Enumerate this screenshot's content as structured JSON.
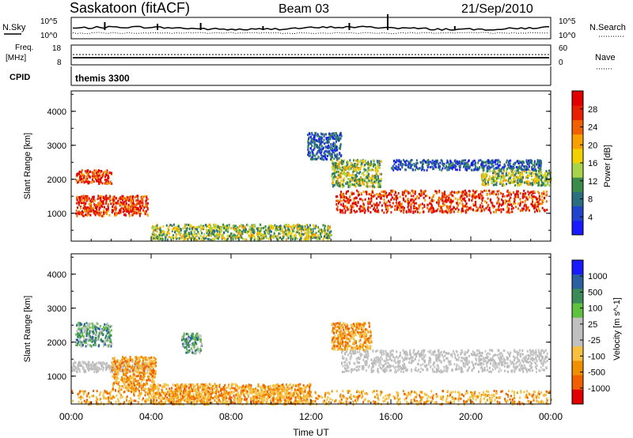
{
  "header": {
    "station": "Saskatoon (fitACF)",
    "beam": "Beam 03",
    "date": "21/Sep/2010"
  },
  "noise_panel": {
    "left_label": "N.Sky",
    "right_label": "N.Search",
    "left_ticks": [
      "10^5",
      "10^0"
    ],
    "right_ticks": [
      "10^5",
      "10^0"
    ]
  },
  "freq_panel": {
    "left_label_1": "Freq.",
    "left_label_2": "[MHz]",
    "right_label": "Nave",
    "left_ticks": [
      "18",
      "8"
    ],
    "right_ticks": [
      "60",
      "0"
    ]
  },
  "cpid_panel": {
    "label": "CPID",
    "text": "themis 3300"
  },
  "chart_data": [
    {
      "type": "heatmap",
      "name": "power",
      "ylabel": "Slant Range [km]",
      "ylim": [
        180,
        4600
      ],
      "yticks": [
        "1000",
        "2000",
        "3000",
        "4000"
      ],
      "colorbar_label": "Power [dB]",
      "colorbar_ticks": [
        "4",
        "8",
        "12",
        "16",
        "20",
        "24",
        "28"
      ],
      "colorbar_colors": [
        "#1a1aff",
        "#2244cc",
        "#2a6f7f",
        "#3b8b4a",
        "#a8d44a",
        "#f2d000",
        "#f8a000",
        "#f06000",
        "#e82000",
        "#e00000"
      ],
      "regions": [
        {
          "t": [
            0.2,
            2.0
          ],
          "r": [
            1900,
            2300
          ],
          "level": "high"
        },
        {
          "t": [
            0.2,
            3.8
          ],
          "r": [
            950,
            1550
          ],
          "level": "high"
        },
        {
          "t": [
            13.2,
            23.8
          ],
          "r": [
            1050,
            1700
          ],
          "level": "high"
        },
        {
          "t": [
            13.0,
            15.5
          ],
          "r": [
            1800,
            2600
          ],
          "level": "medium"
        },
        {
          "t": [
            20.5,
            24.0
          ],
          "r": [
            1850,
            2300
          ],
          "level": "medium"
        },
        {
          "t": [
            4.0,
            13.0
          ],
          "r": [
            250,
            700
          ],
          "level": "medium"
        },
        {
          "t": [
            11.8,
            13.5
          ],
          "r": [
            2600,
            3400
          ],
          "level": "low"
        },
        {
          "t": [
            16.0,
            23.5
          ],
          "r": [
            2300,
            2600
          ],
          "level": "low"
        }
      ]
    },
    {
      "type": "heatmap",
      "name": "velocity",
      "ylabel": "Slant Range [km]",
      "ylim": [
        180,
        4600
      ],
      "yticks": [
        "1000",
        "2000",
        "3000",
        "4000"
      ],
      "xticks": [
        "00:00",
        "04:00",
        "08:00",
        "12:00",
        "16:00",
        "20:00",
        "00:00"
      ],
      "xlabel": "Time UT",
      "colorbar_label": "Velocity [m s^-1]",
      "colorbar_ticks": [
        "1000",
        "500",
        "100",
        "25",
        "-25",
        "-100",
        "-500",
        "-1000"
      ],
      "colorbar_colors": [
        "#1a1aff",
        "#2a5fa0",
        "#3a8a5a",
        "#60c040",
        "#c0c0c0",
        "#c0c0c0",
        "#f8c040",
        "#f09000",
        "#f06000",
        "#e00000"
      ],
      "regions": [
        {
          "t": [
            0.2,
            2.0
          ],
          "r": [
            1900,
            2600
          ],
          "level": "pos"
        },
        {
          "t": [
            0.0,
            4.0
          ],
          "r": [
            1150,
            1450
          ],
          "level": "zero"
        },
        {
          "t": [
            2.0,
            4.2
          ],
          "r": [
            600,
            1600
          ],
          "level": "neg"
        },
        {
          "t": [
            4.0,
            12.0
          ],
          "r": [
            200,
            800
          ],
          "level": "neg"
        },
        {
          "t": [
            13.5,
            23.8
          ],
          "r": [
            1150,
            1800
          ],
          "level": "zero"
        },
        {
          "t": [
            5.5,
            6.5
          ],
          "r": [
            1700,
            2300
          ],
          "level": "pos"
        },
        {
          "t": [
            13.0,
            15.0
          ],
          "r": [
            1800,
            2600
          ],
          "level": "neg"
        },
        {
          "t": [
            0.0,
            24.0
          ],
          "r": [
            200,
            600
          ],
          "level": "neg"
        }
      ]
    }
  ]
}
